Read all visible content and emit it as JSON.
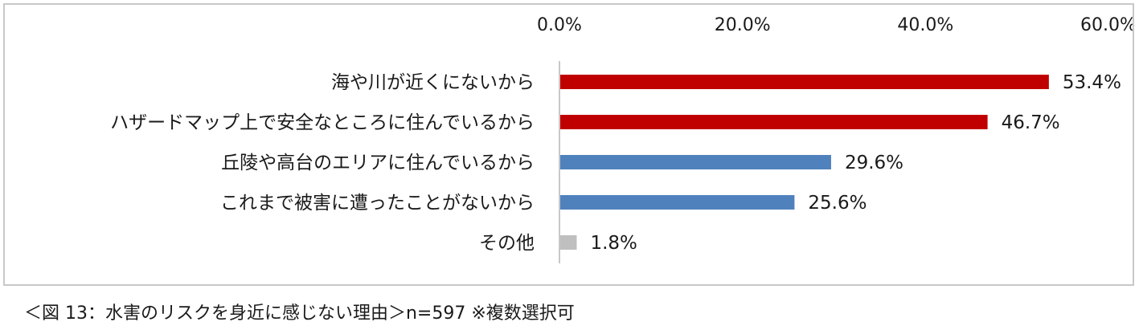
{
  "chart_data": {
    "type": "bar",
    "orientation": "horizontal",
    "categories": [
      "海や川が近くにないから",
      "ハザードマップ上で安全なところに住んでいるから",
      "丘陵や高台のエリアに住んでいるから",
      "これまで被害に遭ったことがないから",
      "その他"
    ],
    "values": [
      53.4,
      46.7,
      29.6,
      25.6,
      1.8
    ],
    "value_labels": [
      "53.4%",
      "46.7%",
      "29.6%",
      "25.6%",
      "1.8%"
    ],
    "bar_colors": [
      "#c00000",
      "#c00000",
      "#4f81bd",
      "#4f81bd",
      "#bfbfbf"
    ],
    "xlim": [
      0,
      60
    ],
    "xticks": [
      "0.0%",
      "20.0%",
      "40.0%",
      "60.0%"
    ],
    "xaxis_position": "top",
    "grid": false,
    "title": "",
    "xlabel": "",
    "ylabel": ""
  },
  "caption": "＜図 13：水害のリスクを身近に感じない理由＞n=597 ※複数選択可"
}
